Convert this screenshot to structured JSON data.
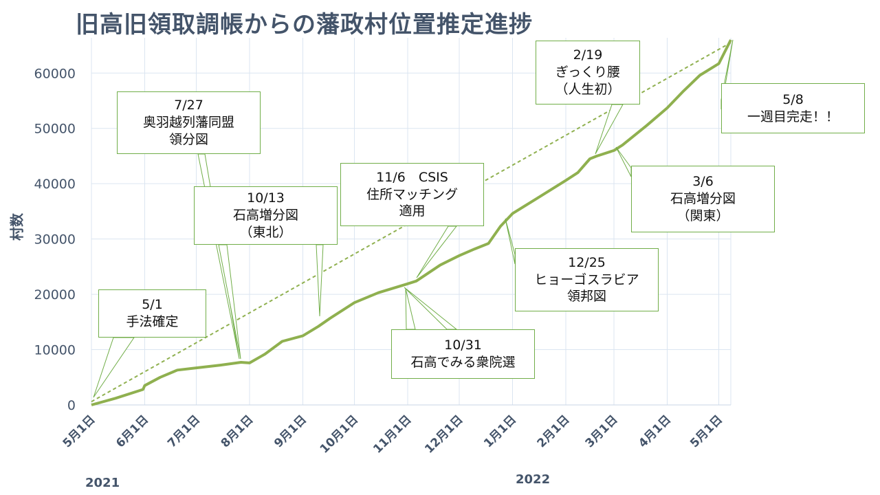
{
  "chart_data": {
    "type": "line",
    "title": "旧高旧領取調帳からの藩政村位置推定進捗",
    "ylabel": "村数",
    "xlabel": "",
    "ylim": [
      0,
      66000
    ],
    "grid": true,
    "x_range": [
      "2021-05-01",
      "2022-05-08"
    ],
    "yticks": [
      0,
      10000,
      20000,
      30000,
      40000,
      50000,
      60000
    ],
    "xticks": [
      {
        "date": "2021-05-01",
        "label": "5月1日"
      },
      {
        "date": "2021-06-01",
        "label": "6月1日"
      },
      {
        "date": "2021-07-01",
        "label": "7月1日"
      },
      {
        "date": "2021-08-01",
        "label": "8月1日"
      },
      {
        "date": "2021-09-01",
        "label": "9月1日"
      },
      {
        "date": "2021-10-01",
        "label": "10月1日"
      },
      {
        "date": "2021-11-01",
        "label": "11月1日"
      },
      {
        "date": "2021-12-01",
        "label": "12月1日"
      },
      {
        "date": "2022-01-01",
        "label": "1月1日"
      },
      {
        "date": "2022-02-01",
        "label": "2月1日"
      },
      {
        "date": "2022-03-01",
        "label": "3月1日"
      },
      {
        "date": "2022-04-01",
        "label": "4月1日"
      },
      {
        "date": "2022-05-01",
        "label": "5月1日"
      }
    ],
    "years": [
      {
        "label": "2021"
      },
      {
        "label": "2022"
      }
    ],
    "series": [
      {
        "color": "#8fb04f",
        "style": "solid",
        "x": [
          "2021-05-01",
          "2021-05-15",
          "2021-05-31",
          "2021-06-01",
          "2021-06-10",
          "2021-06-20",
          "2021-07-01",
          "2021-07-15",
          "2021-07-27",
          "2021-08-01",
          "2021-08-10",
          "2021-08-20",
          "2021-09-01",
          "2021-09-10",
          "2021-09-17",
          "2021-10-01",
          "2021-10-15",
          "2021-10-31",
          "2021-11-06",
          "2021-11-20",
          "2021-12-01",
          "2021-12-10",
          "2021-12-18",
          "2021-12-25",
          "2022-01-01",
          "2022-01-15",
          "2022-02-01",
          "2022-02-08",
          "2022-02-15",
          "2022-02-19",
          "2022-03-01",
          "2022-03-06",
          "2022-03-20",
          "2022-04-01",
          "2022-04-10",
          "2022-04-20",
          "2022-05-01",
          "2022-05-08"
        ],
        "y": [
          0,
          1200,
          2800,
          3500,
          5000,
          6300,
          6700,
          7200,
          7700,
          7600,
          9200,
          11500,
          12500,
          14200,
          15700,
          18500,
          20300,
          21800,
          22400,
          25300,
          27000,
          28200,
          29200,
          32300,
          34600,
          37300,
          40600,
          42000,
          44500,
          45000,
          46000,
          47000,
          50500,
          53700,
          56600,
          59600,
          61700,
          66000
        ]
      },
      {
        "color": "#8fb04f",
        "style": "dashed",
        "x": [
          "2021-05-01",
          "2022-05-08"
        ],
        "y": [
          600,
          65500
        ]
      }
    ],
    "annotations": [
      {
        "lines": [
          "5/1",
          "手法確定"
        ]
      },
      {
        "lines": [
          "7/27",
          "奥羽越列藩同盟",
          "領分図"
        ]
      },
      {
        "lines": [
          "10/13",
          "石高増分図",
          "（東北）"
        ]
      },
      {
        "lines": [
          "11/6　CSIS",
          "住所マッチング",
          "適用"
        ]
      },
      {
        "lines": [
          "10/31",
          "石高でみる衆院選"
        ]
      },
      {
        "lines": [
          "12/25",
          "ヒョーゴスラビア",
          "領邦図"
        ]
      },
      {
        "lines": [
          "2/19",
          "ぎっくり腰",
          "（人生初）"
        ]
      },
      {
        "lines": [
          "3/6",
          "石高増分図",
          "（関東）"
        ]
      },
      {
        "lines": [
          "5/8",
          "一週目完走！！"
        ]
      }
    ]
  }
}
